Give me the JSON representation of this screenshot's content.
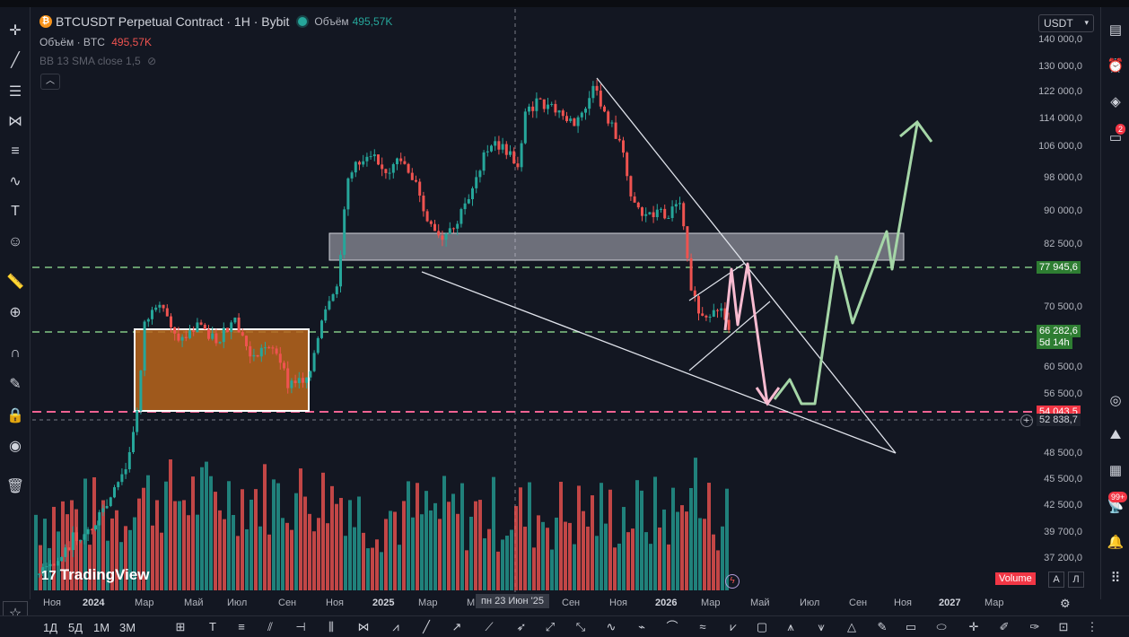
{
  "legend": {
    "symbol_title": "BTCUSDT Perpetual Contract · 1H · Bybit",
    "volume_label": "Объём",
    "volume_value": "495,57K",
    "volume_line_label": "Объём · BTC",
    "volume_line_value": "495,57K",
    "indicator": "BB 13 SMA close 1,5"
  },
  "currency_select": "USDT",
  "price_axis": [
    "140 000,0",
    "130 000,0",
    "122 000,0",
    "114 000,0",
    "106 000,0",
    "98 000,0",
    "90 000,0",
    "82 500,0",
    "70 500,0",
    "60 500,0",
    "56 500,0",
    "48 500,0",
    "45 500,0",
    "42 500,0",
    "39 700,0",
    "37 200,0"
  ],
  "price_badges": {
    "upper_level": "77 945,6",
    "last_price": "66 282,6",
    "countdown": "5d 14h",
    "lower_level": "54 043,5",
    "crosshair_price": "52 838,7"
  },
  "time_axis": [
    "Ноя",
    "2024",
    "Мар",
    "Май",
    "Июл",
    "Сен",
    "Ноя",
    "2025",
    "Мар",
    "М",
    "Сен",
    "Ноя",
    "2026",
    "Мар",
    "Май",
    "Июл",
    "Сен",
    "Ноя",
    "2027",
    "Мар"
  ],
  "crosshair_time": "пн 23 Июн '25",
  "branding": "TradingView",
  "volume_button": "Volume",
  "scale_buttons": [
    "A",
    "Л"
  ],
  "bottom_timeframes": [
    "1Д",
    "5Д",
    "1М",
    "3М"
  ],
  "right_badges": [
    "2",
    "99+"
  ],
  "colors": {
    "up": "#26a69a",
    "down": "#ef5350",
    "bg": "#131722",
    "accent_green": "#a5d6a7",
    "accent_red": "#f48fb1",
    "zone": "#b8651b"
  },
  "chart_data": {
    "type": "candlestick",
    "symbol": "BTCUSDT",
    "ylim": [
      37200,
      140000
    ],
    "y_scale": "log",
    "levels": {
      "upper_dashed": 77945.6,
      "last_price": 66282.6,
      "lower_dashed": 54043.5,
      "crosshair": 52838.7
    }
  }
}
